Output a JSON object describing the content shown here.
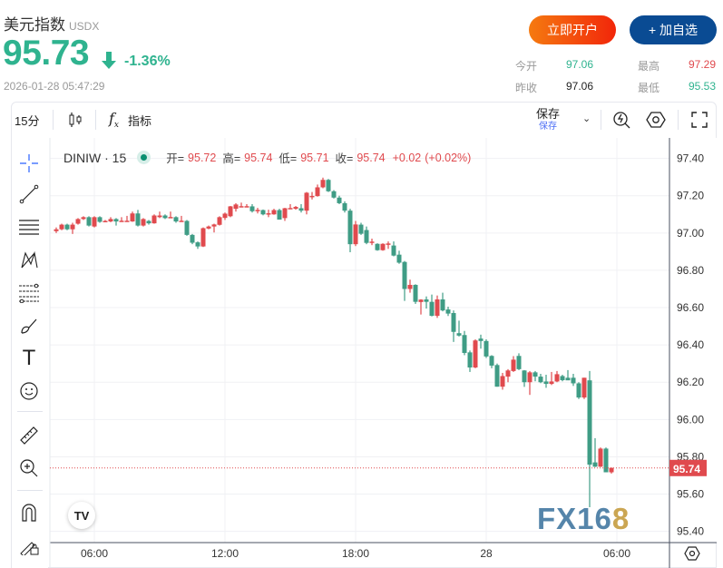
{
  "header": {
    "title": "美元指数",
    "symbol": "USDX",
    "price": "95.73",
    "change_pct": "-1.36%",
    "timestamp": "2026-01-28 05:47:29",
    "direction_icon": "arrow-down-icon",
    "open_account_label": "立即开户",
    "add_watch_label": "+ 加自选",
    "stats": [
      {
        "label": "今开",
        "value": "97.06",
        "color": "#2fb38f"
      },
      {
        "label": "最高",
        "value": "97.29",
        "color": "#e04a4e"
      },
      {
        "label": "昨收",
        "value": "97.06",
        "color": "#222222"
      },
      {
        "label": "最低",
        "value": "95.53",
        "color": "#2fb38f"
      }
    ]
  },
  "toolbar": {
    "interval": "15分",
    "indicators_label": "指标",
    "save_label": "保存",
    "save_sub_label": "保存"
  },
  "legend": {
    "symbol": "DINIW · 15",
    "open_label": "开=",
    "open": "95.72",
    "high_label": "高=",
    "high": "95.74",
    "low_label": "低=",
    "low": "95.71",
    "close_label": "收=",
    "close": "95.74",
    "change": "+0.02",
    "change_pct": "(+0.02%)"
  },
  "colors": {
    "up": "#e04a4e",
    "down": "#3f9c85",
    "price_up": "#2fb38f"
  },
  "watermark": "FX168",
  "chart_data": {
    "type": "candlestick",
    "interval": "15m",
    "ylim": [
      95.34,
      97.51
    ],
    "y_ticks": [
      "97.40",
      "97.20",
      "97.00",
      "96.80",
      "96.60",
      "96.40",
      "96.20",
      "96.00",
      "95.80",
      "95.60",
      "95.40"
    ],
    "x_ticks": [
      "06:00",
      "12:00",
      "18:00",
      "28",
      "06:00"
    ],
    "last_price": "95.74",
    "ohlc": [
      [
        97.01,
        97.03,
        97.0,
        97.02
      ],
      [
        97.02,
        97.05,
        97.015,
        97.045
      ],
      [
        97.045,
        97.05,
        97.015,
        97.02
      ],
      [
        97.02,
        97.055,
        96.995,
        97.045
      ],
      [
        97.05,
        97.08,
        97.045,
        97.075
      ],
      [
        97.075,
        97.09,
        97.07,
        97.085
      ],
      [
        97.085,
        97.09,
        97.035,
        97.04
      ],
      [
        97.035,
        97.09,
        97.03,
        97.085
      ],
      [
        97.085,
        97.09,
        97.055,
        97.06
      ],
      [
        97.063,
        97.07,
        97.058,
        97.065
      ],
      [
        97.062,
        97.085,
        97.058,
        97.075
      ],
      [
        97.075,
        97.08,
        97.04,
        97.062
      ],
      [
        97.064,
        97.085,
        97.06,
        97.066
      ],
      [
        97.064,
        97.092,
        97.06,
        97.066
      ],
      [
        97.062,
        97.115,
        97.06,
        97.105
      ],
      [
        97.105,
        97.124,
        97.035,
        97.04
      ],
      [
        97.04,
        97.08,
        97.035,
        97.075
      ],
      [
        97.065,
        97.07,
        97.045,
        97.052
      ],
      [
        97.052,
        97.1,
        97.05,
        97.094
      ],
      [
        97.085,
        97.115,
        97.08,
        97.094
      ],
      [
        97.094,
        97.1,
        97.075,
        97.08
      ],
      [
        97.084,
        97.115,
        97.08,
        97.086
      ],
      [
        97.085,
        97.09,
        97.055,
        97.062
      ],
      [
        97.064,
        97.092,
        97.06,
        97.066
      ],
      [
        97.065,
        97.07,
        96.985,
        96.99
      ],
      [
        96.99,
        96.995,
        96.94,
        96.948
      ],
      [
        96.95,
        96.955,
        96.915,
        96.928
      ],
      [
        96.928,
        97.03,
        96.925,
        97.026
      ],
      [
        97.024,
        97.04,
        97.02,
        97.035
      ],
      [
        97.035,
        97.05,
        97.003,
        97.046
      ],
      [
        97.044,
        97.09,
        97.04,
        97.085
      ],
      [
        97.081,
        97.11,
        97.07,
        97.104
      ],
      [
        97.09,
        97.145,
        97.085,
        97.143
      ],
      [
        97.13,
        97.16,
        97.115,
        97.153
      ],
      [
        97.142,
        97.163,
        97.138,
        97.144
      ],
      [
        97.142,
        97.155,
        97.138,
        97.144
      ],
      [
        97.143,
        97.155,
        97.11,
        97.117
      ],
      [
        97.122,
        97.135,
        97.105,
        97.124
      ],
      [
        97.123,
        97.126,
        97.095,
        97.1
      ],
      [
        97.104,
        97.125,
        97.085,
        97.106
      ],
      [
        97.1,
        97.13,
        97.098,
        97.123
      ],
      [
        97.123,
        97.13,
        97.072,
        97.072
      ],
      [
        97.08,
        97.135,
        97.065,
        97.133
      ],
      [
        97.132,
        97.155,
        97.128,
        97.134
      ],
      [
        97.13,
        97.145,
        97.125,
        97.14
      ],
      [
        97.133,
        97.155,
        97.11,
        97.12
      ],
      [
        97.12,
        97.22,
        97.1,
        97.216
      ],
      [
        97.197,
        97.22,
        97.18,
        97.199
      ],
      [
        97.198,
        97.26,
        97.195,
        97.245
      ],
      [
        97.245,
        97.297,
        97.24,
        97.285
      ],
      [
        97.285,
        97.29,
        97.22,
        97.224
      ],
      [
        97.224,
        97.23,
        97.185,
        97.19
      ],
      [
        97.19,
        97.2,
        97.155,
        97.16
      ],
      [
        97.16,
        97.17,
        97.11,
        97.12
      ],
      [
        97.12,
        97.13,
        96.897,
        96.94
      ],
      [
        96.94,
        97.065,
        96.93,
        97.046
      ],
      [
        97.045,
        97.055,
        96.99,
        96.996
      ],
      [
        97.016,
        97.035,
        96.94,
        96.947
      ],
      [
        96.95,
        96.97,
        96.935,
        96.954
      ],
      [
        96.942,
        96.945,
        96.905,
        96.908
      ],
      [
        96.908,
        96.945,
        96.905,
        96.942
      ],
      [
        96.94,
        96.955,
        96.915,
        96.944
      ],
      [
        96.933,
        96.955,
        96.875,
        96.879
      ],
      [
        96.884,
        96.905,
        96.835,
        96.841
      ],
      [
        96.845,
        96.85,
        96.636,
        96.7
      ],
      [
        96.7,
        96.75,
        96.68,
        96.722
      ],
      [
        96.722,
        96.725,
        96.62,
        96.631
      ],
      [
        96.63,
        96.645,
        96.563,
        96.643
      ],
      [
        96.644,
        96.66,
        96.595,
        96.631
      ],
      [
        96.631,
        96.67,
        96.553,
        96.556
      ],
      [
        96.556,
        96.665,
        96.545,
        96.644
      ],
      [
        96.644,
        96.68,
        96.58,
        96.585
      ],
      [
        96.59,
        96.605,
        96.555,
        96.568
      ],
      [
        96.571,
        96.585,
        96.416,
        96.47
      ],
      [
        96.463,
        96.53,
        96.445,
        96.45
      ],
      [
        96.453,
        96.475,
        96.345,
        96.357
      ],
      [
        96.36,
        96.37,
        96.255,
        96.279
      ],
      [
        96.279,
        96.43,
        96.275,
        96.424
      ],
      [
        96.434,
        96.455,
        96.38,
        96.421
      ],
      [
        96.421,
        96.43,
        96.33,
        96.338
      ],
      [
        96.341,
        96.345,
        96.275,
        96.289
      ],
      [
        96.292,
        96.3,
        96.176,
        96.176
      ],
      [
        96.176,
        96.25,
        96.16,
        96.233
      ],
      [
        96.23,
        96.27,
        96.2,
        96.263
      ],
      [
        96.26,
        96.34,
        96.255,
        96.321
      ],
      [
        96.341,
        96.355,
        96.265,
        96.27
      ],
      [
        96.263,
        96.265,
        96.175,
        96.2
      ],
      [
        96.2,
        96.26,
        96.132,
        96.253
      ],
      [
        96.253,
        96.26,
        96.205,
        96.23
      ],
      [
        96.23,
        96.245,
        96.195,
        96.2
      ],
      [
        96.204,
        96.24,
        96.17,
        96.191
      ],
      [
        96.191,
        96.255,
        96.185,
        96.204
      ],
      [
        96.204,
        96.26,
        96.2,
        96.243
      ],
      [
        96.233,
        96.24,
        96.205,
        96.211
      ],
      [
        96.224,
        96.265,
        96.215,
        96.21
      ],
      [
        96.224,
        96.245,
        96.18,
        96.194
      ],
      [
        96.194,
        96.2,
        96.11,
        96.118
      ],
      [
        96.118,
        96.224,
        96.11,
        96.224
      ],
      [
        96.21,
        96.26,
        95.53,
        95.758
      ],
      [
        95.77,
        95.9,
        95.745,
        95.747
      ],
      [
        95.747,
        95.85,
        95.745,
        95.844
      ],
      [
        95.844,
        95.85,
        95.717,
        95.717
      ],
      [
        95.717,
        95.742,
        95.71,
        95.741
      ]
    ]
  }
}
